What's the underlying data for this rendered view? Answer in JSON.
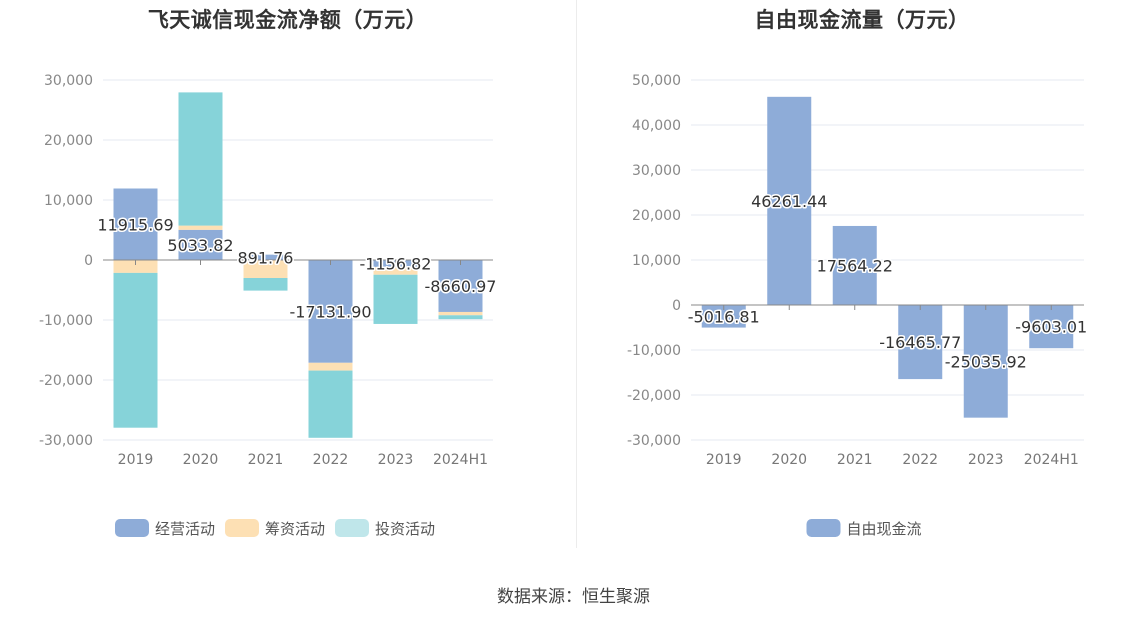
{
  "source_label": "数据来源：恒生聚源",
  "chart_data": [
    {
      "type": "bar",
      "stacked": true,
      "title": "飞天诚信现金流净额（万元）",
      "categories": [
        "2019",
        "2020",
        "2021",
        "2022",
        "2023",
        "2024H1"
      ],
      "series": [
        {
          "name": "经营活动",
          "color": "#8eacd8",
          "values": [
            11915.69,
            5033.82,
            891.76,
            -17131.9,
            -1156.82,
            -8660.97
          ]
        },
        {
          "name": "筹资活动",
          "color": "#fde0b4",
          "values": [
            -2150,
            700,
            -3000,
            -1300,
            -1300,
            -550
          ]
        },
        {
          "name": "投资活动",
          "color": "#86d3d9",
          "values": [
            -25800,
            22200,
            -2100,
            -11200,
            -8200,
            -650
          ]
        }
      ],
      "data_labels": [
        "11915.69",
        "5033.82",
        "891.76",
        "-17131.90",
        "-1156.82",
        "-8660.97"
      ],
      "y_ticks": [
        "30,000",
        "20,000",
        "10,000",
        "0",
        "-10,000",
        "-20,000",
        "-30,000"
      ],
      "ylim": [
        -30000,
        30000
      ],
      "grid": true,
      "legend_position": "bottom"
    },
    {
      "type": "bar",
      "title": "自由现金流量（万元）",
      "categories": [
        "2019",
        "2020",
        "2021",
        "2022",
        "2023",
        "2024H1"
      ],
      "series": [
        {
          "name": "自由现金流",
          "color": "#8eacd8",
          "values": [
            -5016.81,
            46261.44,
            17564.22,
            -16465.77,
            -25035.92,
            -9603.01
          ]
        }
      ],
      "data_labels": [
        "-5016.81",
        "46261.44",
        "17564.22",
        "-16465.77",
        "-25035.92",
        "-9603.01"
      ],
      "y_ticks": [
        "50,000",
        "40,000",
        "30,000",
        "20,000",
        "10,000",
        "0",
        "-10,000",
        "-20,000",
        "-30,000"
      ],
      "ylim": [
        -30000,
        50000
      ],
      "grid": true,
      "legend_position": "bottom"
    }
  ]
}
